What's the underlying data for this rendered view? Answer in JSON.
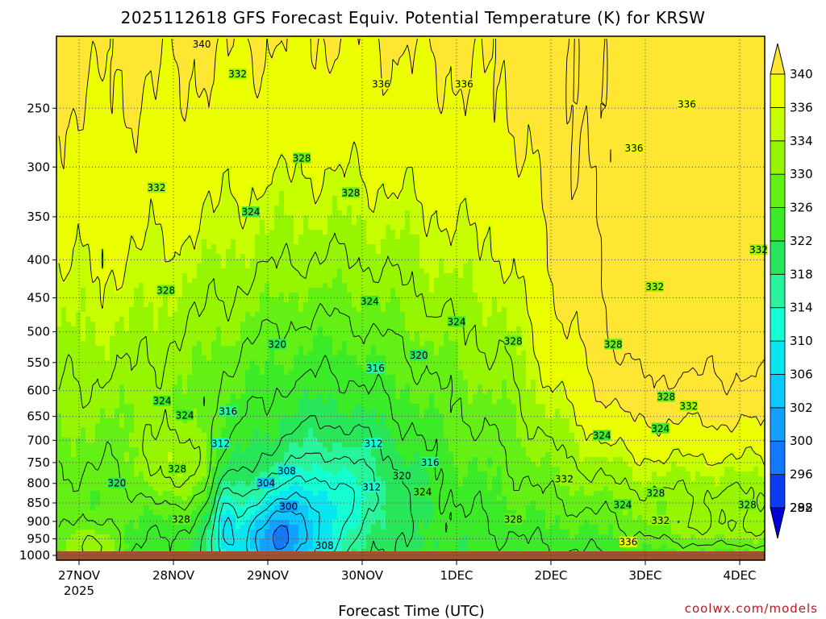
{
  "chart_data": {
    "type": "heatmap",
    "title": "2025112618 GFS Forecast Equiv. Potential Temperature (K) for KRSW",
    "xlabel": "Forecast Time (UTC)",
    "ylabel": "",
    "credit": "coolwx.com/models",
    "x_ticks": [
      "27NOV",
      "28NOV",
      "29NOV",
      "30NOV",
      "1DEC",
      "2DEC",
      "3DEC",
      "4DEC"
    ],
    "x_tick_sub": "2025",
    "y_ticks": [
      250,
      300,
      350,
      400,
      450,
      500,
      550,
      600,
      650,
      700,
      750,
      800,
      850,
      900,
      950,
      1000
    ],
    "ylim": [
      200,
      1015
    ],
    "y_scale": "log-pressure",
    "colorbar": {
      "levels": [
        288,
        292,
        296,
        300,
        302,
        306,
        310,
        314,
        318,
        322,
        326,
        330,
        334,
        336,
        340
      ],
      "colors": [
        "#0000d8",
        "#0a3cf0",
        "#1478ff",
        "#14a0ff",
        "#0cc8ff",
        "#0ae6f0",
        "#14ffd2",
        "#28f59b",
        "#28e65a",
        "#3ceb28",
        "#64f014",
        "#96f500",
        "#c8ff00",
        "#ebff00",
        "#ffe632"
      ]
    },
    "contour_labels": [
      {
        "t": 1.3,
        "p": 205,
        "v": "340"
      },
      {
        "t": 1.68,
        "p": 225,
        "v": "332"
      },
      {
        "t": 3.2,
        "p": 232,
        "v": "336"
      },
      {
        "t": 4.08,
        "p": 232,
        "v": "336"
      },
      {
        "t": 6.44,
        "p": 247,
        "v": "336"
      },
      {
        "t": 5.88,
        "p": 283,
        "v": "336"
      },
      {
        "t": 0.82,
        "p": 320,
        "v": "332"
      },
      {
        "t": 2.36,
        "p": 292,
        "v": "328"
      },
      {
        "t": 2.88,
        "p": 325,
        "v": "328"
      },
      {
        "t": 1.82,
        "p": 345,
        "v": "324"
      },
      {
        "t": 7.2,
        "p": 388,
        "v": "332"
      },
      {
        "t": 6.1,
        "p": 435,
        "v": "332"
      },
      {
        "t": 0.92,
        "p": 440,
        "v": "328"
      },
      {
        "t": 3.08,
        "p": 455,
        "v": "324"
      },
      {
        "t": 4.0,
        "p": 485,
        "v": "324"
      },
      {
        "t": 4.6,
        "p": 515,
        "v": "328"
      },
      {
        "t": 5.66,
        "p": 520,
        "v": "328"
      },
      {
        "t": 2.1,
        "p": 520,
        "v": "320"
      },
      {
        "t": 3.6,
        "p": 538,
        "v": "320"
      },
      {
        "t": 3.14,
        "p": 560,
        "v": "316"
      },
      {
        "t": 0.88,
        "p": 620,
        "v": "324"
      },
      {
        "t": 6.22,
        "p": 612,
        "v": "328"
      },
      {
        "t": 6.46,
        "p": 630,
        "v": "332"
      },
      {
        "t": 1.12,
        "p": 648,
        "v": "324"
      },
      {
        "t": 1.58,
        "p": 640,
        "v": "316"
      },
      {
        "t": 5.54,
        "p": 690,
        "v": "324"
      },
      {
        "t": 6.16,
        "p": 675,
        "v": "324"
      },
      {
        "t": 1.5,
        "p": 707,
        "v": "312"
      },
      {
        "t": 3.12,
        "p": 707,
        "v": "312"
      },
      {
        "t": 3.72,
        "p": 750,
        "v": "316"
      },
      {
        "t": 1.04,
        "p": 765,
        "v": "328"
      },
      {
        "t": 2.2,
        "p": 770,
        "v": "308"
      },
      {
        "t": 3.42,
        "p": 782,
        "v": "320"
      },
      {
        "t": 5.14,
        "p": 790,
        "v": "332"
      },
      {
        "t": 1.98,
        "p": 800,
        "v": "304"
      },
      {
        "t": 0.4,
        "p": 800,
        "v": "320"
      },
      {
        "t": 3.64,
        "p": 822,
        "v": "324"
      },
      {
        "t": 3.1,
        "p": 810,
        "v": "312"
      },
      {
        "t": 6.11,
        "p": 825,
        "v": "328"
      },
      {
        "t": 5.76,
        "p": 855,
        "v": "324"
      },
      {
        "t": 7.08,
        "p": 855,
        "v": "328"
      },
      {
        "t": 2.22,
        "p": 860,
        "v": "300"
      },
      {
        "t": 1.08,
        "p": 895,
        "v": "328"
      },
      {
        "t": 4.6,
        "p": 895,
        "v": "328"
      },
      {
        "t": 6.16,
        "p": 898,
        "v": "332"
      },
      {
        "t": 5.82,
        "p": 960,
        "v": "336"
      },
      {
        "t": 2.6,
        "p": 970,
        "v": "308"
      }
    ]
  }
}
